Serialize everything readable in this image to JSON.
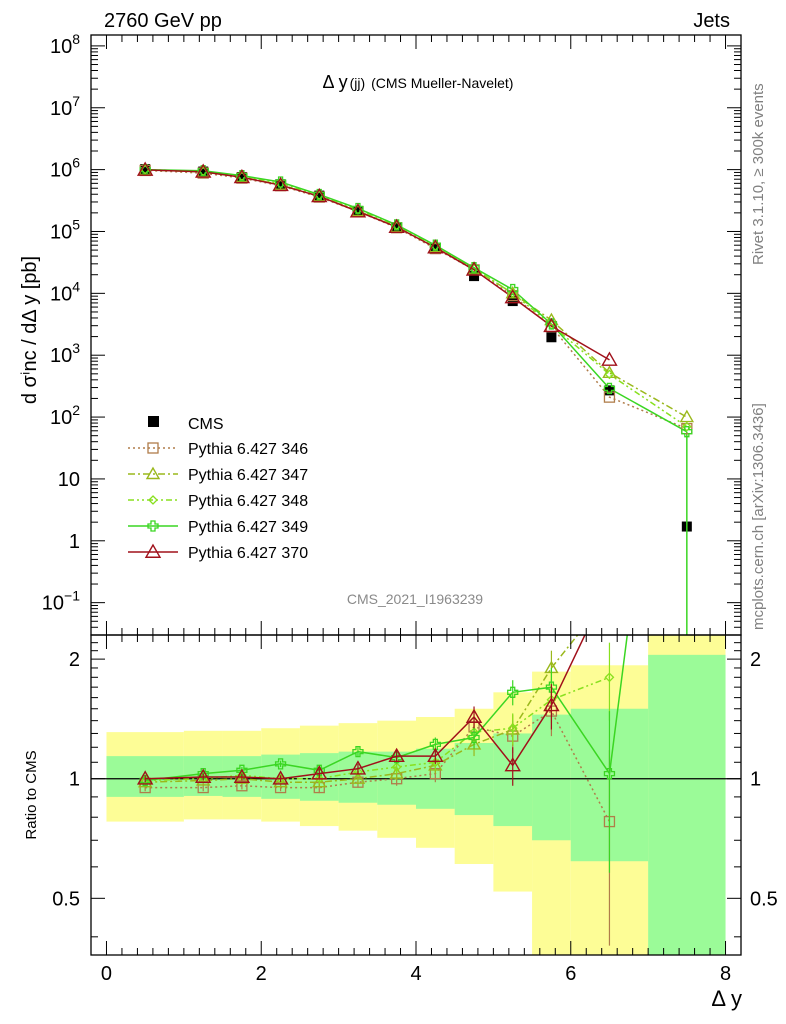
{
  "header": {
    "left": "2760 GeV pp",
    "right": "Jets"
  },
  "side_text": {
    "top": "Rivet 3.1.10, ≥ 300k events",
    "bottom": "mcplots.cern.ch [arXiv:1306.3436]"
  },
  "chart_data": {
    "type": "line",
    "title_main": "Δ y",
    "title_sub": "(jj)",
    "title_rest": "(CMS Mueller-Navelet)",
    "watermark": "CMS_2021_I1963239",
    "ylabel": "d σⁱnc / dΔ y [pb]",
    "xlabel": "Δ y",
    "ratio_ylabel": "Ratio to CMS",
    "xlim": [
      -0.2,
      8.2
    ],
    "ylim_log": [
      0.03,
      150000000
    ],
    "ratio_ylim": [
      0.36,
      2.3
    ],
    "ratio_log": true,
    "x_ticks": [
      0,
      2,
      4,
      6,
      8
    ],
    "y_ticks": [
      {
        "v": 100000000,
        "base": "10",
        "exp": "8"
      },
      {
        "v": 10000000,
        "base": "10",
        "exp": "7"
      },
      {
        "v": 1000000,
        "base": "10",
        "exp": "6"
      },
      {
        "v": 100000,
        "base": "10",
        "exp": "5"
      },
      {
        "v": 10000,
        "base": "10",
        "exp": "4"
      },
      {
        "v": 1000,
        "base": "10",
        "exp": "3"
      },
      {
        "v": 100,
        "base": "10",
        "exp": "2"
      },
      {
        "v": 10,
        "base": "10",
        "exp": ""
      },
      {
        "v": 1,
        "base": "1",
        "exp": ""
      },
      {
        "v": 0.1,
        "base": "10",
        "exp": "−1"
      }
    ],
    "ratio_ticks": [
      {
        "v": 0.5,
        "label": "0.5"
      },
      {
        "v": 1,
        "label": "1"
      },
      {
        "v": 2,
        "label": "2"
      }
    ],
    "legend": "left-middle",
    "data": {
      "name": "CMS",
      "x": [
        0.5,
        1.25,
        1.75,
        2.25,
        2.75,
        3.25,
        3.75,
        4.25,
        4.75,
        5.25,
        5.75,
        6.5,
        7.5
      ],
      "y": [
        1020000,
        930000,
        760000,
        580000,
        380000,
        215000,
        115000,
        52000,
        19000,
        7500,
        1950,
        270,
        1.7
      ]
    },
    "bands": {
      "edges": [
        0.0,
        1.0,
        1.5,
        2.0,
        2.5,
        3.0,
        3.5,
        4.0,
        4.5,
        5.0,
        5.5,
        6.0,
        7.0,
        8.0
      ],
      "green": [
        [
          0.9,
          1.14
        ],
        [
          0.905,
          1.14
        ],
        [
          0.9,
          1.14
        ],
        [
          0.89,
          1.15
        ],
        [
          0.88,
          1.16
        ],
        [
          0.87,
          1.17
        ],
        [
          0.86,
          1.17
        ],
        [
          0.84,
          1.19
        ],
        [
          0.81,
          1.23
        ],
        [
          0.76,
          1.3
        ],
        [
          0.7,
          1.45
        ],
        [
          0.62,
          1.5
        ],
        [
          0.36,
          2.05
        ]
      ],
      "yellow": [
        [
          0.78,
          1.31
        ],
        [
          0.79,
          1.32
        ],
        [
          0.79,
          1.32
        ],
        [
          0.78,
          1.34
        ],
        [
          0.76,
          1.36
        ],
        [
          0.74,
          1.38
        ],
        [
          0.71,
          1.4
        ],
        [
          0.67,
          1.43
        ],
        [
          0.61,
          1.5
        ],
        [
          0.52,
          1.65
        ],
        [
          0.36,
          1.86
        ],
        [
          0.36,
          1.93
        ],
        [
          0.36,
          2.3
        ]
      ]
    },
    "series": [
      {
        "name": "Pythia 6.427 346",
        "color": "#b07d4a",
        "dash": "2,3",
        "marker": "square",
        "y": [
          970000,
          880000,
          730000,
          550000,
          360000,
          210000,
          115000,
          53000,
          24000,
          9200,
          2900,
          210,
          65
        ],
        "ratio": [
          0.95,
          0.95,
          0.96,
          0.95,
          0.95,
          0.98,
          1.0,
          1.03,
          1.35,
          1.28,
          1.48,
          0.78,
          null
        ],
        "ratio_err": [
          0.02,
          0.02,
          0.02,
          0.02,
          0.03,
          0.03,
          0.04,
          0.05,
          0.08,
          0.12,
          0.2,
          0.4,
          null
        ]
      },
      {
        "name": "Pythia 6.427 347",
        "color": "#9ab81c",
        "dash": "7,3,2,3",
        "marker": "triangle",
        "y": [
          990000,
          920000,
          760000,
          570000,
          370000,
          215000,
          118000,
          56000,
          25000,
          10000,
          3700,
          520,
          100
        ],
        "ratio": [
          0.98,
          0.99,
          1.0,
          0.98,
          0.98,
          1.0,
          1.03,
          1.08,
          1.22,
          1.33,
          1.9,
          2.9,
          null
        ],
        "ratio_err": [
          0.02,
          0.02,
          0.02,
          0.02,
          0.03,
          0.03,
          0.04,
          0.05,
          0.08,
          0.12,
          0.2,
          0.5,
          null
        ]
      },
      {
        "name": "Pythia 6.427 348",
        "color": "#88e01e",
        "dash": "6,3,2,3,2,3",
        "marker": "diamond",
        "y": [
          1000000,
          940000,
          780000,
          590000,
          385000,
          225000,
          125000,
          58000,
          25000,
          10000,
          3100,
          490,
          70
        ],
        "ratio": [
          0.99,
          1.0,
          1.02,
          1.0,
          1.0,
          1.04,
          1.07,
          1.1,
          1.31,
          1.34,
          1.58,
          1.8,
          null
        ],
        "ratio_err": [
          0.02,
          0.02,
          0.02,
          0.02,
          0.03,
          0.03,
          0.04,
          0.05,
          0.08,
          0.12,
          0.2,
          0.4,
          null
        ]
      },
      {
        "name": "Pythia 6.427 349",
        "color": "#3ad622",
        "dash": "",
        "marker": "cross",
        "y": [
          1000000,
          960000,
          800000,
          630000,
          395000,
          235000,
          128000,
          60000,
          26000,
          11500,
          3200,
          290,
          58
        ],
        "ratio": [
          0.99,
          1.03,
          1.05,
          1.09,
          1.05,
          1.17,
          1.13,
          1.22,
          1.27,
          1.65,
          1.7,
          1.03,
          34.0
        ],
        "ratio_err": [
          0.02,
          0.02,
          0.02,
          0.02,
          0.03,
          0.03,
          0.04,
          0.05,
          0.08,
          0.12,
          0.2,
          0.45,
          null
        ]
      },
      {
        "name": "Pythia 6.427 370",
        "color": "#a0101a",
        "dash": "",
        "marker": "triangle-open",
        "y": [
          990000,
          920000,
          750000,
          560000,
          370000,
          210000,
          118000,
          55000,
          24000,
          8600,
          2950,
          840,
          null
        ],
        "ratio": [
          1.0,
          1.01,
          1.01,
          1.0,
          1.03,
          1.06,
          1.14,
          1.14,
          1.43,
          1.08,
          1.53,
          3.1,
          null
        ],
        "ratio_err": [
          0.02,
          0.02,
          0.02,
          0.02,
          0.03,
          0.03,
          0.04,
          0.05,
          0.09,
          0.12,
          0.2,
          0.5,
          null
        ]
      }
    ]
  }
}
